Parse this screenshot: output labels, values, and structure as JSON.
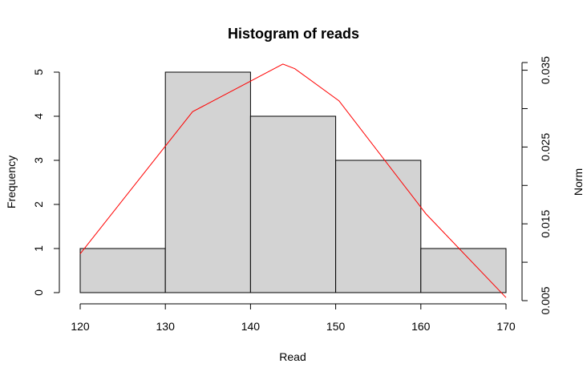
{
  "chart_data": {
    "type": "bar",
    "title": "Histogram of reads",
    "xlabel": "Read",
    "ylabel": "Frequency",
    "y2label": "Norm",
    "bins": [
      {
        "from": 120,
        "to": 130,
        "count": 1
      },
      {
        "from": 130,
        "to": 140,
        "count": 5
      },
      {
        "from": 140,
        "to": 150,
        "count": 4
      },
      {
        "from": 150,
        "to": 160,
        "count": 3
      },
      {
        "from": 160,
        "to": 170,
        "count": 1
      }
    ],
    "xlim": [
      120,
      170
    ],
    "ylim": [
      0,
      5
    ],
    "y2lim": [
      0.005,
      0.036
    ],
    "x_ticks": [
      120,
      130,
      140,
      150,
      160,
      170
    ],
    "y_ticks": [
      0,
      1,
      2,
      3,
      4,
      5
    ],
    "y2_ticks": [
      0.005,
      0.015,
      0.025,
      0.035
    ],
    "y2_minor_ticks": [
      0.01,
      0.02,
      0.03
    ],
    "norm_series": {
      "x": [
        120,
        133.2,
        143.8,
        145.2,
        150.4,
        160.6,
        170
      ],
      "y": [
        0.0111,
        0.0296,
        0.0358,
        0.0352,
        0.031,
        0.0163,
        0.0054
      ]
    },
    "colors": {
      "bar_fill": "#d3d3d3",
      "bar_stroke": "#000000",
      "line": "#ff0000"
    },
    "grid": false
  }
}
